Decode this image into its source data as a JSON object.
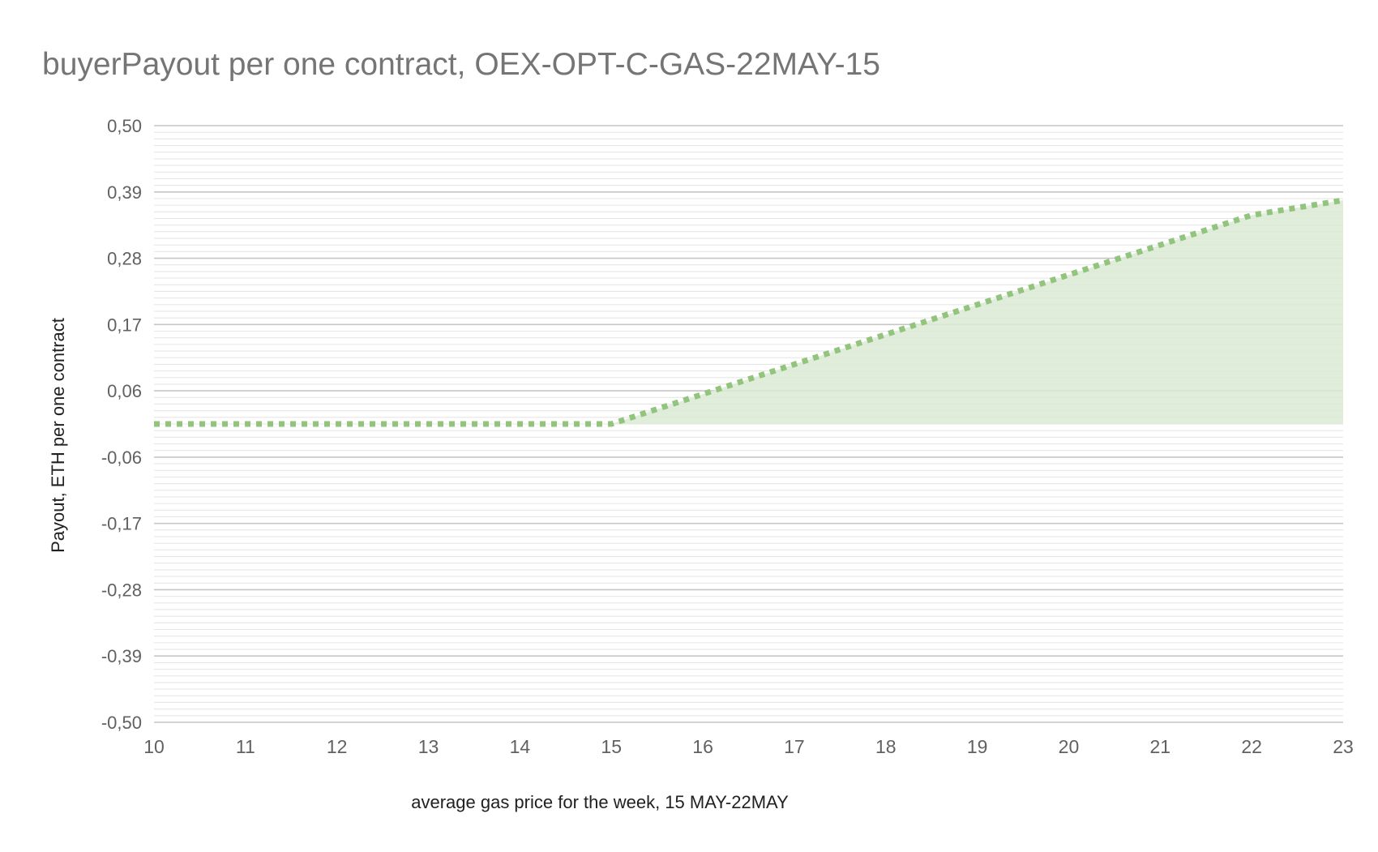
{
  "chart_data": {
    "type": "area",
    "title": "buyerPayout per one contract, OEX-OPT-C-GAS-22MAY-15",
    "xlabel": "average gas price for the week, 15 MAY-22MAY",
    "ylabel": "Payout, ETH per one contract",
    "x_ticks": [
      "10",
      "11",
      "12",
      "13",
      "14",
      "15",
      "16",
      "17",
      "18",
      "19",
      "20",
      "21",
      "22",
      "23"
    ],
    "y_ticks": [
      "0,50",
      "0,39",
      "0,28",
      "0,17",
      "0,06",
      "-0,06",
      "-0,17",
      "-0,28",
      "-0,39",
      "-0,50"
    ],
    "xlim": [
      10,
      23
    ],
    "ylim": [
      -0.5,
      0.5
    ],
    "grid": true,
    "series": [
      {
        "x": [
          10,
          11,
          12,
          13,
          14,
          15,
          16,
          17,
          18,
          19,
          20,
          21,
          22,
          23
        ],
        "y": [
          0,
          0,
          0,
          0,
          0,
          0,
          0.05,
          0.1,
          0.15,
          0.2,
          0.25,
          0.3,
          0.35,
          0.375
        ],
        "line_style": "dotted",
        "color": "#93c47d",
        "fill_color": "#d9ead3"
      }
    ]
  }
}
